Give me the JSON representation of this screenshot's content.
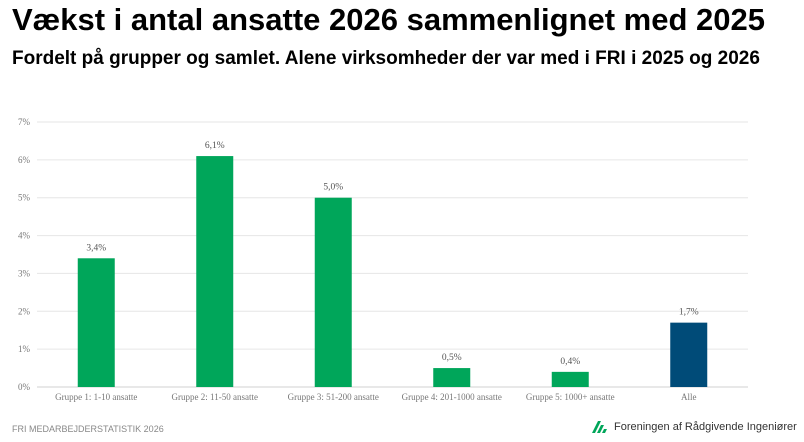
{
  "title": "Vækst i antal ansatte 2026 sammenlignet med 2025",
  "subtitle": "Fordelt på grupper og samlet. Alene virksomheder der var med i FRI i 2025 og 2026",
  "footer": "FRI MEDARBEJDERSTATISTIK 2026",
  "logo_text": "Foreningen af Rådgivende Ingeniører",
  "colors": {
    "green": "#00a65a",
    "navy": "#004b78",
    "grid": "#e6e6e6"
  },
  "chart_data": {
    "type": "bar",
    "categories": [
      "Gruppe 1: 1-10 ansatte",
      "Gruppe 2: 11-50 ansatte",
      "Gruppe 3: 51-200 ansatte",
      "Gruppe 4: 201-1000 ansatte",
      "Gruppe 5: 1000+ ansatte",
      "Alle"
    ],
    "values": [
      3.4,
      6.1,
      5.0,
      0.5,
      0.4,
      1.7
    ],
    "data_labels": [
      "3,4%",
      "6,1%",
      "5,0%",
      "0,5%",
      "0,4%",
      "1,7%"
    ],
    "highlight": [
      false,
      false,
      false,
      false,
      false,
      true
    ],
    "ylim": [
      0,
      7
    ],
    "yticks": [
      "0%",
      "1%",
      "2%",
      "3%",
      "4%",
      "5%",
      "6%",
      "7%"
    ],
    "grid": true,
    "xlabel": "",
    "ylabel": ""
  }
}
